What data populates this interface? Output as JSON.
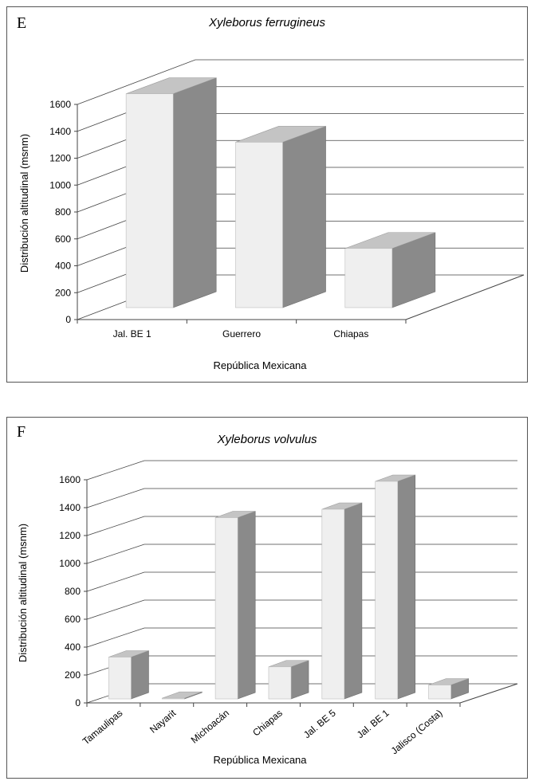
{
  "chart_data": [
    {
      "type": "bar",
      "panel_letter": "E",
      "title": "Xyleborus ferrugineus",
      "xlabel": "República Mexicana",
      "ylabel": "Distribución altitudinal (msnm)",
      "categories": [
        "Jal. BE 1",
        "Guerrero",
        "Chiapas"
      ],
      "values": [
        1590,
        1230,
        440
      ],
      "ylim": [
        0,
        1600
      ],
      "yticks": [
        "0",
        "200",
        "400",
        "600",
        "800",
        "1000",
        "1200",
        "1400",
        "1600"
      ],
      "grid": true,
      "three_d": true
    },
    {
      "type": "bar",
      "panel_letter": "F",
      "title": "Xyleborus volvulus",
      "xlabel": "República Mexicana",
      "ylabel": "Distribución altitudinal (msnm)",
      "categories": [
        "Tamaulipas",
        "Nayarit",
        "Michoacán",
        "Chiapas",
        "Jal. BE 5",
        "Jal. BE 1",
        "Jalisco (Costa)"
      ],
      "values": [
        300,
        5,
        1300,
        230,
        1360,
        1560,
        100
      ],
      "ylim": [
        0,
        1600
      ],
      "yticks": [
        "0",
        "200",
        "400",
        "600",
        "800",
        "1000",
        "1200",
        "1400",
        "1600"
      ],
      "grid": true,
      "three_d": true
    }
  ]
}
